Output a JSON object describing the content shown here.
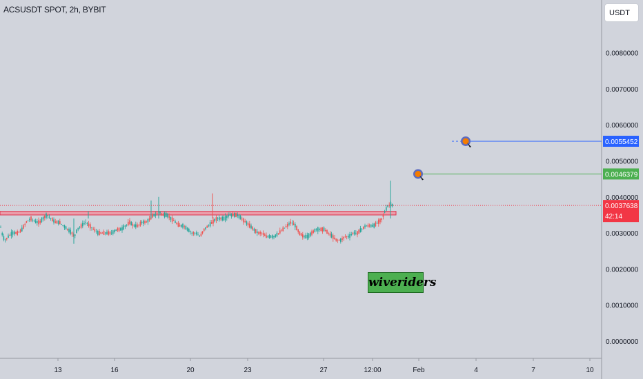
{
  "header": {
    "symbol": "ACSUSDT SPOT, 2h, BYBIT",
    "currency": "USDT"
  },
  "watermark": "wiveriders",
  "colors": {
    "background": "#d1d4dc",
    "up_candle": "#26a69a",
    "down_candle": "#ef5350",
    "zone": "#f28b9a",
    "target_blue": "#2962ff",
    "target_green": "#4caf50",
    "last_price": "#f23645",
    "marker": "#f57c00"
  },
  "chart_data": {
    "type": "candlestick",
    "y_axis": {
      "ticks": [
        "0.0080000",
        "0.0070000",
        "0.0060000",
        "0.0050000",
        "0.0040000",
        "0.0030000",
        "0.0020000",
        "0.0010000",
        "0.0000000"
      ],
      "ylim": [
        0,
        0.0088
      ]
    },
    "x_axis": {
      "ticks": [
        "13",
        "16",
        "20",
        "23",
        "27",
        "12:00",
        "Feb",
        "4",
        "7",
        "10"
      ]
    },
    "price_trace": [
      [
        0,
        0.00325
      ],
      [
        4,
        0.0029
      ],
      [
        8,
        0.0028
      ],
      [
        12,
        0.0029
      ],
      [
        18,
        0.003
      ],
      [
        26,
        0.003
      ],
      [
        32,
        0.0031
      ],
      [
        38,
        0.0033
      ],
      [
        45,
        0.0034
      ],
      [
        52,
        0.0033
      ],
      [
        58,
        0.0033
      ],
      [
        62,
        0.0034
      ],
      [
        68,
        0.0035
      ],
      [
        74,
        0.0034
      ],
      [
        80,
        0.0033
      ],
      [
        86,
        0.0033
      ],
      [
        92,
        0.0032
      ],
      [
        98,
        0.0031
      ],
      [
        104,
        0.003
      ],
      [
        108,
        0.0029
      ],
      [
        112,
        0.0031
      ],
      [
        118,
        0.0032
      ],
      [
        124,
        0.0033
      ],
      [
        130,
        0.0032
      ],
      [
        136,
        0.0031
      ],
      [
        142,
        0.003
      ],
      [
        148,
        0.003
      ],
      [
        155,
        0.003
      ],
      [
        162,
        0.003
      ],
      [
        170,
        0.0031
      ],
      [
        176,
        0.0031
      ],
      [
        182,
        0.0032
      ],
      [
        188,
        0.0033
      ],
      [
        194,
        0.0032
      ],
      [
        200,
        0.0032
      ],
      [
        206,
        0.0033
      ],
      [
        212,
        0.0033
      ],
      [
        218,
        0.0034
      ],
      [
        222,
        0.0035
      ],
      [
        226,
        0.0035
      ],
      [
        230,
        0.0036
      ],
      [
        236,
        0.0035
      ],
      [
        242,
        0.0035
      ],
      [
        248,
        0.0034
      ],
      [
        254,
        0.0033
      ],
      [
        260,
        0.0032
      ],
      [
        266,
        0.0032
      ],
      [
        272,
        0.0031
      ],
      [
        278,
        0.003
      ],
      [
        284,
        0.003
      ],
      [
        290,
        0.0029
      ],
      [
        296,
        0.0031
      ],
      [
        302,
        0.0032
      ],
      [
        308,
        0.0033
      ],
      [
        314,
        0.0034
      ],
      [
        320,
        0.0034
      ],
      [
        326,
        0.0034
      ],
      [
        332,
        0.0035
      ],
      [
        338,
        0.0035
      ],
      [
        344,
        0.0035
      ],
      [
        350,
        0.0034
      ],
      [
        356,
        0.0033
      ],
      [
        362,
        0.0032
      ],
      [
        368,
        0.0031
      ],
      [
        374,
        0.003
      ],
      [
        380,
        0.003
      ],
      [
        386,
        0.0029
      ],
      [
        392,
        0.0029
      ],
      [
        398,
        0.0029
      ],
      [
        404,
        0.003
      ],
      [
        410,
        0.0031
      ],
      [
        416,
        0.0032
      ],
      [
        422,
        0.0033
      ],
      [
        428,
        0.0032
      ],
      [
        434,
        0.003
      ],
      [
        440,
        0.0029
      ],
      [
        446,
        0.0029
      ],
      [
        452,
        0.003
      ],
      [
        458,
        0.0031
      ],
      [
        464,
        0.0031
      ],
      [
        470,
        0.0031
      ],
      [
        476,
        0.003
      ],
      [
        482,
        0.0029
      ],
      [
        488,
        0.0028
      ],
      [
        494,
        0.0028
      ],
      [
        500,
        0.0029
      ],
      [
        506,
        0.0029
      ],
      [
        512,
        0.003
      ],
      [
        518,
        0.003
      ],
      [
        524,
        0.0031
      ],
      [
        530,
        0.0032
      ],
      [
        536,
        0.0032
      ],
      [
        542,
        0.0032
      ],
      [
        548,
        0.0033
      ],
      [
        554,
        0.0034
      ],
      [
        558,
        0.0036
      ],
      [
        562,
        0.00375
      ],
      [
        566,
        0.0038
      ],
      [
        570,
        0.00376
      ]
    ],
    "resistance_zone": {
      "low": 0.0035,
      "high": 0.0036
    },
    "targets": [
      {
        "label": "0.0055452",
        "value": 0.0055452
      },
      {
        "label": "0.0046379",
        "value": 0.0046379
      }
    ],
    "last_price": {
      "label": "0.0037638",
      "value": 0.0037638,
      "countdown": "42:14"
    }
  }
}
